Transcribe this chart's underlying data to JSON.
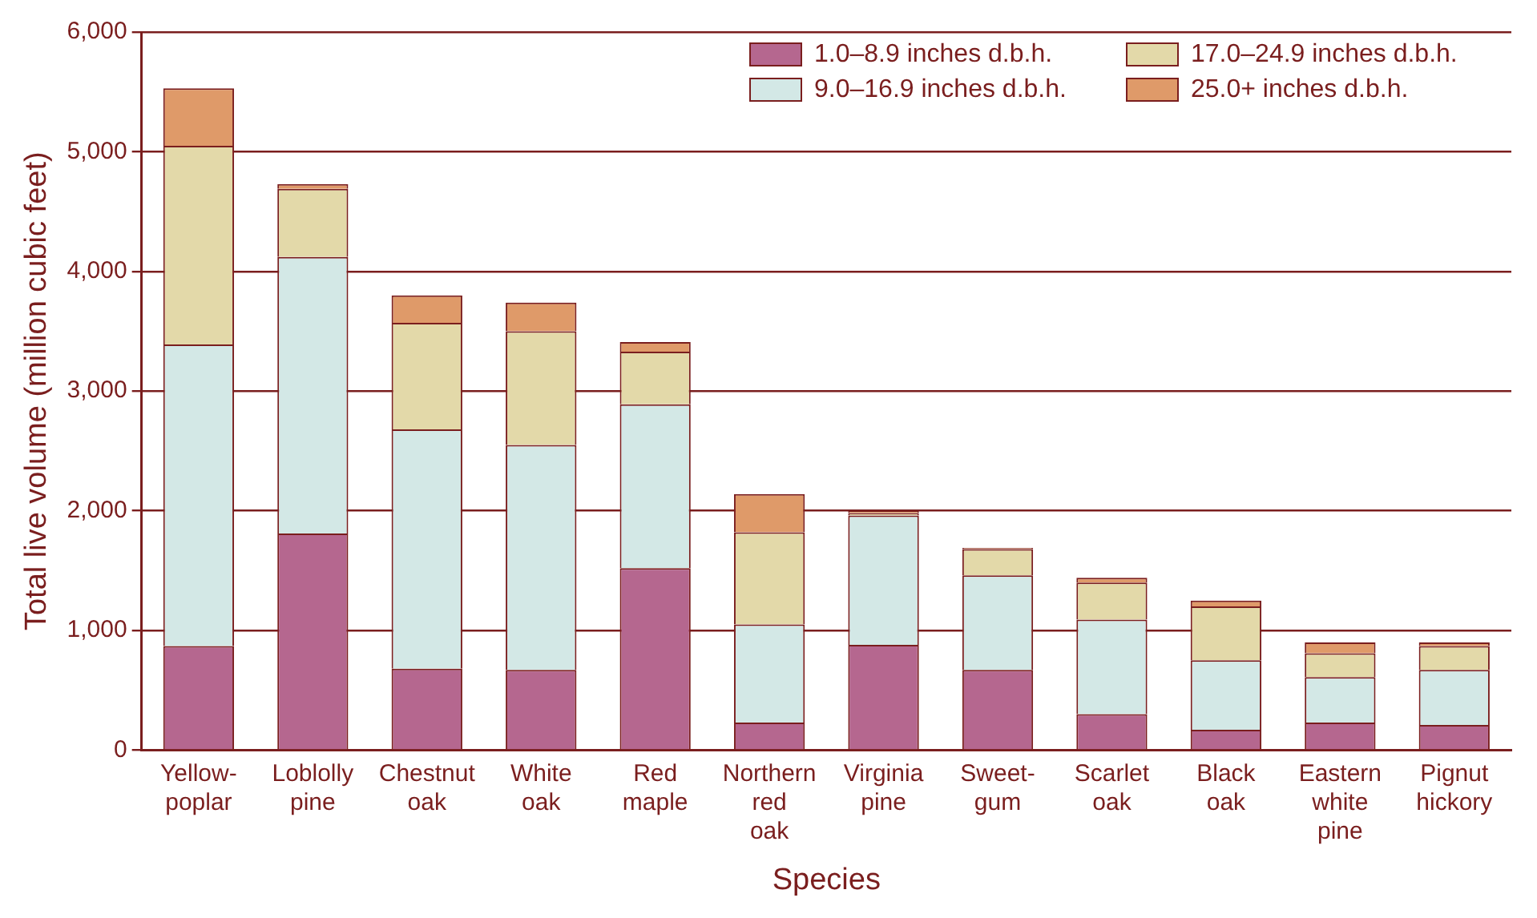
{
  "chart_data": {
    "type": "bar",
    "stacked": true,
    "xlabel": "Species",
    "ylabel": "Total live volume (million cubic feet)",
    "categories": [
      "Yellow-poplar",
      "Loblolly pine",
      "Chestnut oak",
      "White oak",
      "Red maple",
      "Northern red oak",
      "Virginia pine",
      "Sweet-gum",
      "Scarlet oak",
      "Black oak",
      "Eastern white pine",
      "Pignut hickory"
    ],
    "series": [
      {
        "name": "1.0–8.9 inches d.b.h.",
        "color": "#b5678f",
        "values": [
          870,
          1810,
          680,
          670,
          1520,
          230,
          880,
          670,
          300,
          170,
          230,
          210
        ]
      },
      {
        "name": "9.0–16.9 inches d.b.h.",
        "color": "#d3e8e6",
        "values": [
          2520,
          2310,
          2000,
          1880,
          1370,
          820,
          1080,
          790,
          790,
          580,
          380,
          460
        ]
      },
      {
        "name": "17.0–24.9 inches d.b.h.",
        "color": "#e3d9a9",
        "values": [
          1660,
          570,
          890,
          950,
          440,
          770,
          20,
          220,
          310,
          450,
          200,
          200
        ]
      },
      {
        "name": "25.0+ inches d.b.h.",
        "color": "#df9a69",
        "values": [
          480,
          40,
          230,
          240,
          80,
          320,
          20,
          10,
          40,
          50,
          90,
          30
        ]
      }
    ],
    "ylim": [
      0,
      6000
    ],
    "yticks": [
      {
        "value": 0,
        "label": "0"
      },
      {
        "value": 1000,
        "label": "1,000"
      },
      {
        "value": 2000,
        "label": "2,000"
      },
      {
        "value": 3000,
        "label": "3,000"
      },
      {
        "value": 4000,
        "label": "4,000"
      },
      {
        "value": 5000,
        "label": "5,000"
      },
      {
        "value": 6000,
        "label": "6,000"
      }
    ],
    "grid": "y",
    "legend": "top right"
  }
}
